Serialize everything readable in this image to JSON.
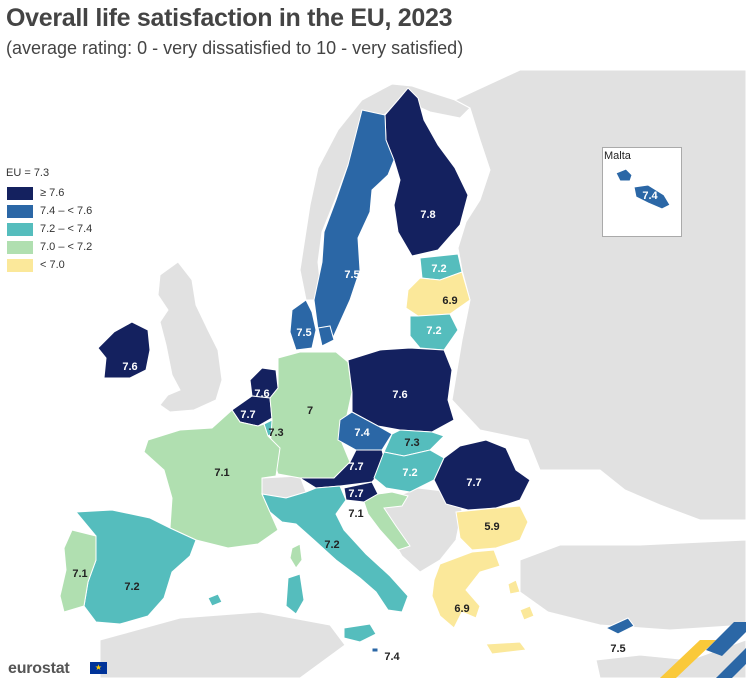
{
  "title": "Overall life satisfaction in the EU, 2023",
  "subtitle": "(average rating: 0 - very dissatisfied to 10 - very satisfied)",
  "legend": {
    "heading": "EU = 7.3",
    "classes": [
      {
        "label": "≥ 7.6",
        "color": "#14215f"
      },
      {
        "label": "7.4 – < 7.6",
        "color": "#2b67a6"
      },
      {
        "label": "7.2 – < 7.4",
        "color": "#55bdbd"
      },
      {
        "label": "7.0 – < 7.2",
        "color": "#b0dfb0"
      },
      {
        "label": "< 7.0",
        "color": "#fbe89a"
      }
    ]
  },
  "inset": {
    "title": "Malta"
  },
  "branding": {
    "name": "eurostat"
  },
  "countries": {
    "finland": {
      "name": "Finland",
      "value": "7.8"
    },
    "sweden": {
      "name": "Sweden",
      "value": "7.5"
    },
    "estonia": {
      "name": "Estonia",
      "value": "7.2"
    },
    "latvia": {
      "name": "Latvia",
      "value": "6.9"
    },
    "lithuania": {
      "name": "Lithuania",
      "value": "7.2"
    },
    "denmark": {
      "name": "Denmark",
      "value": "7.5"
    },
    "ireland": {
      "name": "Ireland",
      "value": "7.6"
    },
    "netherlands": {
      "name": "Netherlands",
      "value": "7.6"
    },
    "belgium": {
      "name": "Belgium",
      "value": "7.7"
    },
    "luxembourg": {
      "name": "Luxembourg",
      "value": "7.3"
    },
    "germany": {
      "name": "Germany",
      "value": "7"
    },
    "poland": {
      "name": "Poland",
      "value": "7.6"
    },
    "czechia": {
      "name": "Czechia",
      "value": "7.4"
    },
    "slovakia": {
      "name": "Slovakia",
      "value": "7.3"
    },
    "austria": {
      "name": "Austria",
      "value": "7.7"
    },
    "hungary": {
      "name": "Hungary",
      "value": "7.2"
    },
    "slovenia": {
      "name": "Slovenia",
      "value": "7.7"
    },
    "croatia": {
      "name": "Croatia",
      "value": "7.1"
    },
    "romania": {
      "name": "Romania",
      "value": "7.7"
    },
    "bulgaria": {
      "name": "Bulgaria",
      "value": "5.9"
    },
    "france": {
      "name": "France",
      "value": "7.1"
    },
    "italy": {
      "name": "Italy",
      "value": "7.2"
    },
    "spain": {
      "name": "Spain",
      "value": "7.2"
    },
    "portugal": {
      "name": "Portugal",
      "value": "7.1"
    },
    "greece": {
      "name": "Greece",
      "value": "6.9"
    },
    "cyprus": {
      "name": "Cyprus",
      "value": "7.5"
    },
    "malta": {
      "name": "Malta",
      "value": "7.4"
    },
    "malta_main": {
      "name": "Malta",
      "value": "7.4"
    }
  }
}
